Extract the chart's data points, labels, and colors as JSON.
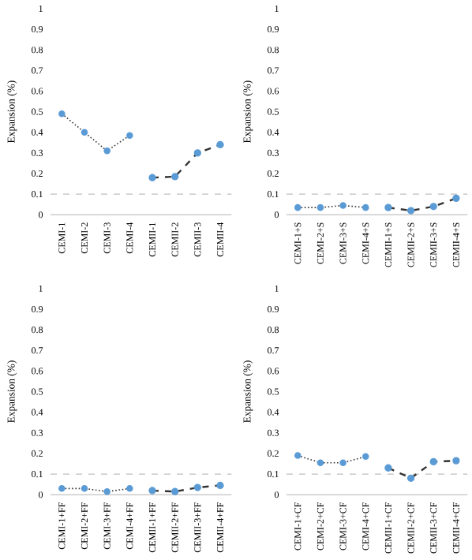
{
  "chart_data": [
    {
      "type": "line",
      "ylabel": "Expansion (%)",
      "categories": [
        "CEMI-1",
        "CEMI-2",
        "CEMI-3",
        "CEMI-4",
        "CEMII-1",
        "CEMII-2",
        "CEMII-3",
        "CEMII-4"
      ],
      "ylim": [
        0,
        1
      ],
      "yticks": [
        0,
        0.1,
        0.2,
        0.3,
        0.4,
        0.5,
        0.6,
        0.7,
        0.8,
        0.9,
        1
      ],
      "grid": false,
      "legend": false,
      "marker": "circle",
      "series": [
        {
          "color": "#5b9bd5",
          "line_style": "dotted",
          "values": [
            0.49,
            0.4,
            0.31,
            0.385,
            null,
            null,
            null,
            null
          ]
        },
        {
          "color": "#5b9bd5",
          "line_style": "dashed",
          "values": [
            null,
            null,
            null,
            null,
            0.18,
            0.185,
            0.3,
            0.34
          ]
        }
      ],
      "ref_lines": [
        {
          "axis": "y",
          "value": 0.1,
          "color": "#bfbfbf",
          "line_style": "dashed"
        }
      ]
    },
    {
      "type": "line",
      "ylabel": "Expansion (%)",
      "categories": [
        "CEMI-1+S",
        "CEMI-2+S",
        "CEMI-3+S",
        "CEMI-4+S",
        "CEMII-1+S",
        "CEMII-2+S",
        "CEMII-3+S",
        "CEMII-4+S"
      ],
      "ylim": [
        0,
        1
      ],
      "yticks": [
        0,
        0.1,
        0.2,
        0.3,
        0.4,
        0.5,
        0.6,
        0.7,
        0.8,
        0.9,
        1
      ],
      "grid": false,
      "legend": false,
      "marker": "circle",
      "series": [
        {
          "color": "#5b9bd5",
          "line_style": "dotted",
          "values": [
            0.035,
            0.035,
            0.045,
            0.035,
            null,
            null,
            null,
            null
          ]
        },
        {
          "color": "#5b9bd5",
          "line_style": "dashed",
          "values": [
            null,
            null,
            null,
            null,
            0.035,
            0.02,
            0.04,
            0.08
          ]
        }
      ],
      "ref_lines": [
        {
          "axis": "y",
          "value": 0.1,
          "color": "#bfbfbf",
          "line_style": "dashed"
        }
      ]
    },
    {
      "type": "line",
      "ylabel": "Expansion (%)",
      "categories": [
        "CEMI-1+FF",
        "CEMI-2+FF",
        "CEMI-3+FF",
        "CEMI-4+FF",
        "CEMII-1+FF",
        "CEMII-2+FF",
        "CEMII-3+FF",
        "CEMII-4+FF"
      ],
      "ylim": [
        0,
        1
      ],
      "yticks": [
        0,
        0.1,
        0.2,
        0.3,
        0.4,
        0.5,
        0.6,
        0.7,
        0.8,
        0.9,
        1
      ],
      "grid": false,
      "legend": false,
      "marker": "circle",
      "series": [
        {
          "color": "#5b9bd5",
          "line_style": "dotted",
          "values": [
            0.03,
            0.03,
            0.015,
            0.03,
            null,
            null,
            null,
            null
          ]
        },
        {
          "color": "#5b9bd5",
          "line_style": "dashed",
          "values": [
            null,
            null,
            null,
            null,
            0.02,
            0.015,
            0.035,
            0.045
          ]
        }
      ],
      "ref_lines": [
        {
          "axis": "y",
          "value": 0.1,
          "color": "#bfbfbf",
          "line_style": "dashed"
        }
      ]
    },
    {
      "type": "line",
      "ylabel": "Expansion (%)",
      "categories": [
        "CEMI-1+CF",
        "CEMI-2+CF",
        "CEMI-3+CF",
        "CEMI-4+CF",
        "CEMII-1+CF",
        "CEMII-2+CF",
        "CEMII-3+CF",
        "CEMII-4+CF"
      ],
      "ylim": [
        0,
        1
      ],
      "yticks": [
        0,
        0.1,
        0.2,
        0.3,
        0.4,
        0.5,
        0.6,
        0.7,
        0.8,
        0.9,
        1
      ],
      "grid": false,
      "legend": false,
      "marker": "circle",
      "series": [
        {
          "color": "#5b9bd5",
          "line_style": "dotted",
          "values": [
            0.19,
            0.155,
            0.155,
            0.185,
            null,
            null,
            null,
            null
          ]
        },
        {
          "color": "#5b9bd5",
          "line_style": "dashed",
          "values": [
            null,
            null,
            null,
            null,
            0.13,
            0.08,
            0.16,
            0.165
          ]
        }
      ],
      "ref_lines": [
        {
          "axis": "y",
          "value": 0.1,
          "color": "#bfbfbf",
          "line_style": "dashed"
        }
      ]
    }
  ]
}
